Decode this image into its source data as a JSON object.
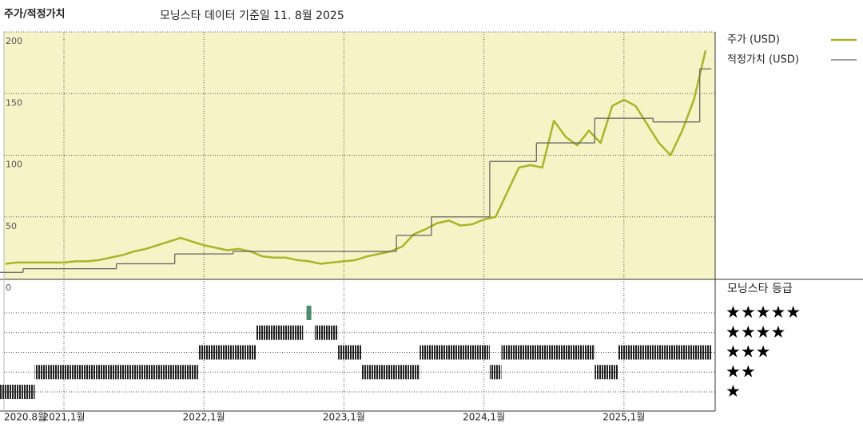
{
  "chart_data": {
    "type": "line",
    "title": "주가/적정가치",
    "subtitle": "모닝스타 데이터 기준일 11. 8월 2025",
    "x": [
      "2020-08",
      "2020-09",
      "2020-10",
      "2020-11",
      "2020-12",
      "2021-01",
      "2021-02",
      "2021-03",
      "2021-04",
      "2021-05",
      "2021-06",
      "2021-07",
      "2021-08",
      "2021-09",
      "2021-10",
      "2021-11",
      "2021-12",
      "2022-01",
      "2022-02",
      "2022-03",
      "2022-04",
      "2022-05",
      "2022-06",
      "2022-07",
      "2022-08",
      "2022-09",
      "2022-10",
      "2022-11",
      "2022-12",
      "2023-01",
      "2023-02",
      "2023-03",
      "2023-04",
      "2023-05",
      "2023-06",
      "2023-07",
      "2023-08",
      "2023-09",
      "2023-10",
      "2023-11",
      "2023-12",
      "2024-01",
      "2024-02",
      "2024-03",
      "2024-04",
      "2024-05",
      "2024-06",
      "2024-07",
      "2024-08",
      "2024-09",
      "2024-10",
      "2024-11",
      "2024-12",
      "2025-01",
      "2025-02",
      "2025-03",
      "2025-04",
      "2025-05",
      "2025-06",
      "2025-07",
      "2025-08"
    ],
    "xticks": [
      {
        "value": "2020-08",
        "label": "2020.8월"
      },
      {
        "value": "2021-01",
        "label": "2021,1월"
      },
      {
        "value": "2022-01",
        "label": "2022,1월"
      },
      {
        "value": "2023-01",
        "label": "2023,1월"
      },
      {
        "value": "2024-01",
        "label": "2024,1월"
      },
      {
        "value": "2025-01",
        "label": "2025,1월"
      }
    ],
    "ylim": [
      0,
      200
    ],
    "yticks": [
      0,
      50,
      100,
      150,
      200
    ],
    "grid": true,
    "series": [
      {
        "name": "주가 (USD)",
        "color": "#a9b42a",
        "values": [
          12,
          13,
          13,
          13,
          13,
          13,
          14,
          14,
          15,
          17,
          19,
          22,
          24,
          27,
          30,
          33,
          30,
          27,
          25,
          23,
          24,
          22,
          18,
          17,
          17,
          15,
          14,
          12,
          13,
          14,
          15,
          18,
          20,
          22,
          26,
          36,
          40,
          45,
          47,
          43,
          44,
          48,
          50,
          70,
          90,
          92,
          90,
          128,
          115,
          108,
          120,
          110,
          140,
          145,
          140,
          125,
          110,
          100,
          120,
          145,
          185
        ]
      },
      {
        "name": "적정가치 (USD)",
        "color": "#666666",
        "step": true,
        "values": [
          5,
          5,
          8,
          8,
          8,
          8,
          8,
          8,
          8,
          8,
          12,
          12,
          12,
          12,
          12,
          20,
          20,
          20,
          20,
          20,
          22,
          22,
          22,
          22,
          22,
          22,
          22,
          22,
          22,
          22,
          22,
          22,
          22,
          22,
          35,
          35,
          35,
          50,
          50,
          50,
          50,
          50,
          95,
          95,
          95,
          95,
          110,
          110,
          110,
          110,
          110,
          130,
          130,
          130,
          130,
          130,
          127,
          127,
          127,
          127,
          170
        ]
      }
    ],
    "ratings": {
      "title": "모닝스타 등급",
      "levels": [
        {
          "value": 5,
          "label": "★★★★★"
        },
        {
          "value": 4,
          "label": "★★★★"
        },
        {
          "value": 3,
          "label": "★★★"
        },
        {
          "value": 2,
          "label": "★★"
        },
        {
          "value": 1,
          "label": "★"
        }
      ],
      "values": [
        1,
        1,
        1,
        2,
        2,
        2,
        2,
        2,
        2,
        2,
        2,
        2,
        2,
        2,
        2,
        2,
        2,
        3,
        3,
        3,
        3,
        3,
        4,
        4,
        4,
        4,
        5,
        4,
        4,
        3,
        3,
        2,
        2,
        2,
        2,
        2,
        3,
        3,
        3,
        3,
        3,
        3,
        2,
        3,
        3,
        3,
        3,
        3,
        3,
        3,
        3,
        2,
        2,
        3,
        3,
        3,
        3,
        3,
        3,
        3,
        3
      ],
      "highlight": {
        "value": 5,
        "color": "#4a8c6e"
      }
    }
  }
}
